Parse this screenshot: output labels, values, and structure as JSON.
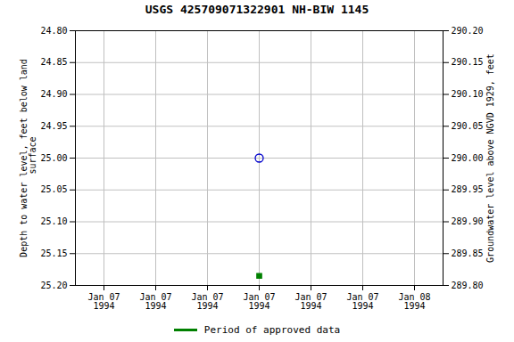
{
  "chart_data": {
    "type": "scatter",
    "title": "USGS 425709071322901 NH-BIW 1145",
    "ylabel": "Depth to water level, feet below land\n surface",
    "y2label": "Groundwater level above NGVD 1929, feet",
    "categories": [
      "Jan 07\n1994",
      "Jan 07\n1994",
      "Jan 07\n1994",
      "Jan 07\n1994",
      "Jan 07\n1994",
      "Jan 07\n1994",
      "Jan 08\n1994"
    ],
    "series": [
      {
        "color": "#0000cc",
        "marker": "open_circle",
        "values": [
          null,
          null,
          null,
          25.0,
          null,
          null,
          null
        ]
      },
      {
        "name": "Period of approved data",
        "color": "#008000",
        "marker": "square",
        "values": [
          null,
          null,
          null,
          25.185,
          null,
          null,
          null
        ]
      }
    ],
    "ylim": [
      25.2,
      24.8
    ],
    "yticks": [
      {
        "value": 24.8,
        "label": "24.80"
      },
      {
        "value": 24.85,
        "label": "24.85"
      },
      {
        "value": 24.9,
        "label": "24.90"
      },
      {
        "value": 24.95,
        "label": "24.95"
      },
      {
        "value": 25.0,
        "label": "25.00"
      },
      {
        "value": 25.05,
        "label": "25.05"
      },
      {
        "value": 25.1,
        "label": "25.10"
      },
      {
        "value": 25.15,
        "label": "25.15"
      },
      {
        "value": 25.2,
        "label": "25.20"
      }
    ],
    "y2lim": [
      289.8,
      290.2
    ],
    "y2ticks": [
      {
        "value": 290.2,
        "label": "290.20"
      },
      {
        "value": 290.15,
        "label": "290.15"
      },
      {
        "value": 290.1,
        "label": "290.10"
      },
      {
        "value": 290.05,
        "label": "290.05"
      },
      {
        "value": 290.0,
        "label": "290.00"
      },
      {
        "value": 289.95,
        "label": "289.95"
      },
      {
        "value": 289.9,
        "label": "289.90"
      },
      {
        "value": 289.85,
        "label": "289.85"
      },
      {
        "value": 289.8,
        "label": "289.80"
      }
    ],
    "grid": true,
    "legend": "lower center"
  }
}
